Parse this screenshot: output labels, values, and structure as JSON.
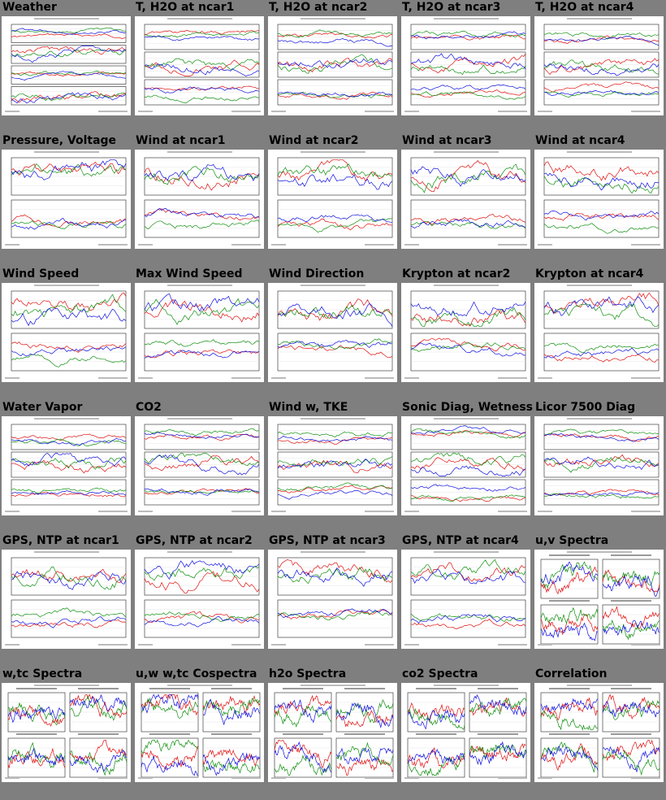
{
  "colors": {
    "page_bg": "#7f7f7f",
    "thumb_bg": "#ffffff",
    "series": [
      "#e01010",
      "#109010",
      "#1010e0",
      "#e0a000"
    ]
  },
  "plots": [
    {
      "title": "Weather",
      "kind": "weather"
    },
    {
      "title": "T, H2O at ncar1",
      "kind": "ts3"
    },
    {
      "title": "T, H2O at ncar2",
      "kind": "ts3"
    },
    {
      "title": "T, H2O at ncar3",
      "kind": "ts3"
    },
    {
      "title": "T, H2O at ncar4",
      "kind": "ts3"
    },
    {
      "title": "Pressure, Voltage",
      "kind": "ts2"
    },
    {
      "title": "Wind at ncar1",
      "kind": "ts2"
    },
    {
      "title": "Wind at ncar2",
      "kind": "ts2"
    },
    {
      "title": "Wind at ncar3",
      "kind": "ts2"
    },
    {
      "title": "Wind at ncar4",
      "kind": "ts2"
    },
    {
      "title": "Wind Speed",
      "kind": "ts2"
    },
    {
      "title": "Max Wind Speed",
      "kind": "ts2"
    },
    {
      "title": "Wind Direction",
      "kind": "ts2"
    },
    {
      "title": "Krypton at ncar2",
      "kind": "ts2"
    },
    {
      "title": "Krypton at ncar4",
      "kind": "ts2"
    },
    {
      "title": "Water Vapor",
      "kind": "ts3"
    },
    {
      "title": "CO2",
      "kind": "ts3"
    },
    {
      "title": "Wind w, TKE",
      "kind": "ts3"
    },
    {
      "title": "Sonic Diag, Wetness",
      "kind": "ts3"
    },
    {
      "title": "Licor 7500 Diag",
      "kind": "ts3"
    },
    {
      "title": "GPS, NTP at ncar1",
      "kind": "ts2"
    },
    {
      "title": "GPS, NTP at ncar2",
      "kind": "ts2"
    },
    {
      "title": "GPS, NTP at ncar3",
      "kind": "ts2"
    },
    {
      "title": "GPS, NTP at ncar4",
      "kind": "ts2"
    },
    {
      "title": "u,v Spectra",
      "kind": "spectra"
    },
    {
      "title": "w,tc Spectra",
      "kind": "spectra"
    },
    {
      "title": "u,w w,tc Cospectra",
      "kind": "spectra"
    },
    {
      "title": "h2o Spectra",
      "kind": "spectra"
    },
    {
      "title": "co2 Spectra",
      "kind": "spectra"
    },
    {
      "title": "Correlation",
      "kind": "spectra"
    }
  ]
}
